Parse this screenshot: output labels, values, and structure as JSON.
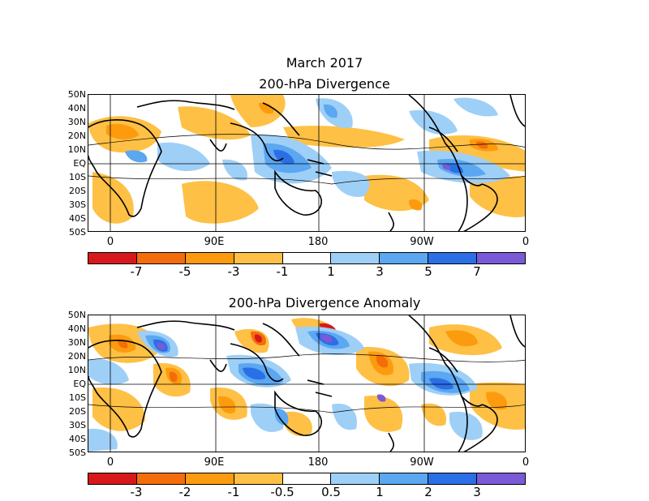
{
  "title": "March 2017",
  "panel1": {
    "title": "200-hPa Divergence",
    "lat_labels": [
      "50N",
      "40N",
      "30N",
      "20N",
      "10N",
      "EQ",
      "10S",
      "20S",
      "30S",
      "40S",
      "50S"
    ],
    "lon_labels": [
      "0",
      "90E",
      "180",
      "90W",
      "0"
    ],
    "colorbar": {
      "colors": [
        "#d7191c",
        "#f46d0b",
        "#fd9b0e",
        "#fec045",
        "#ffffff",
        "#9ecff7",
        "#5ba7f1",
        "#2b6fe6",
        "#7a5ad6"
      ],
      "labels": [
        "-7",
        "-5",
        "-3",
        "-1",
        "1",
        "3",
        "5",
        "7"
      ]
    }
  },
  "panel2": {
    "title": "200-hPa Divergence Anomaly",
    "lat_labels": [
      "50N",
      "40N",
      "30N",
      "20N",
      "10N",
      "EQ",
      "10S",
      "20S",
      "30S",
      "40S",
      "50S"
    ],
    "lon_labels": [
      "0",
      "90E",
      "180",
      "90W",
      "0"
    ],
    "colorbar": {
      "colors": [
        "#d7191c",
        "#f46d0b",
        "#fd9b0e",
        "#fec045",
        "#ffffff",
        "#9ecff7",
        "#5ba7f1",
        "#2b6fe6",
        "#7a5ad6"
      ],
      "labels": [
        "-3",
        "-2",
        "-1",
        "-0.5",
        "0.5",
        "1",
        "2",
        "3"
      ]
    }
  }
}
